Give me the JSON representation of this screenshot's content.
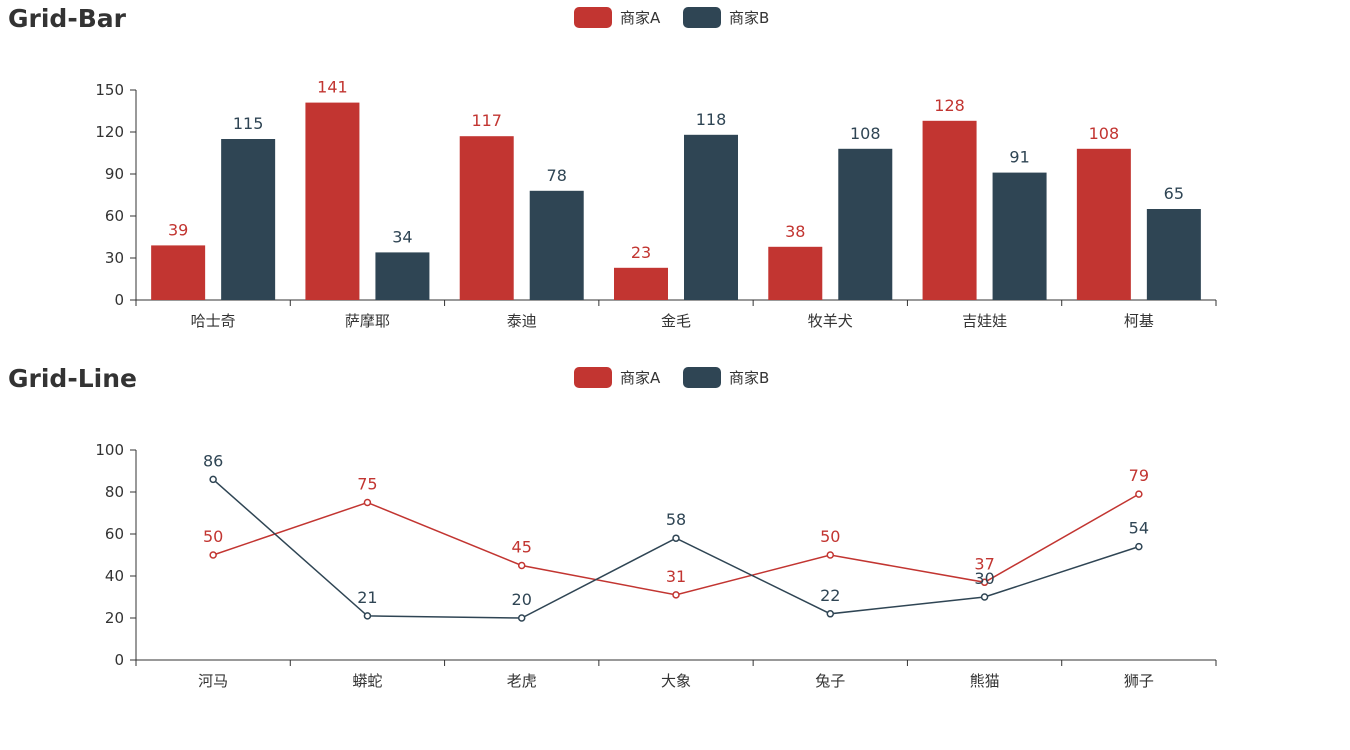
{
  "chart_data": [
    {
      "type": "bar",
      "title": "Grid-Bar",
      "legend_placement": "top-center",
      "categories": [
        "哈士奇",
        "萨摩耶",
        "泰迪",
        "金毛",
        "牧羊犬",
        "吉娃娃",
        "柯基"
      ],
      "ylim": [
        0,
        150
      ],
      "yticks": [
        0,
        30,
        60,
        90,
        120,
        150
      ],
      "grid": false,
      "series": [
        {
          "name": "商家A",
          "color": "#c23531",
          "values": [
            39,
            141,
            117,
            23,
            38,
            128,
            108
          ]
        },
        {
          "name": "商家B",
          "color": "#2f4554",
          "values": [
            115,
            34,
            78,
            118,
            108,
            91,
            65
          ]
        }
      ]
    },
    {
      "type": "line",
      "title": "Grid-Line",
      "legend_placement": "top-center",
      "categories": [
        "河马",
        "蟒蛇",
        "老虎",
        "大象",
        "兔子",
        "熊猫",
        "狮子"
      ],
      "ylim": [
        0,
        100
      ],
      "yticks": [
        0,
        20,
        40,
        60,
        80,
        100
      ],
      "grid": false,
      "series": [
        {
          "name": "商家A",
          "color": "#c23531",
          "values": [
            50,
            75,
            45,
            31,
            50,
            37,
            79
          ]
        },
        {
          "name": "商家B",
          "color": "#2f4554",
          "values": [
            86,
            21,
            20,
            58,
            22,
            30,
            54
          ]
        }
      ]
    }
  ]
}
